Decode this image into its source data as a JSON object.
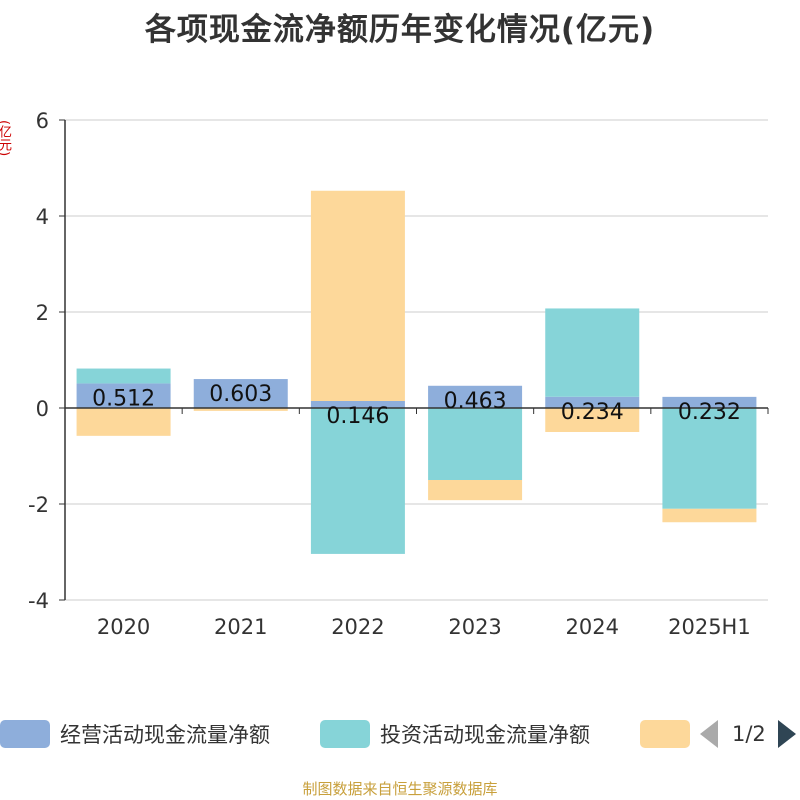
{
  "title": "各项现金流净额历年变化情况(亿元)",
  "unit_label": "(亿元)",
  "source": "制图数据来自恒生聚源数据库",
  "pager": {
    "text": "1/2"
  },
  "colors": {
    "operating": "#8eaedb",
    "investing": "#86d4d8",
    "financing": "#fdd89a",
    "axis": "#333333",
    "grid": "#cccccc"
  },
  "legend": [
    {
      "label": "经营活动现金流量净额",
      "color": "#8eaedb"
    },
    {
      "label": "投资活动现金流量净额",
      "color": "#86d4d8"
    },
    {
      "label": "",
      "color": "#fdd89a"
    }
  ],
  "chart_data": {
    "type": "bar",
    "stacked": true,
    "categories": [
      "2020",
      "2021",
      "2022",
      "2023",
      "2024",
      "2025H1"
    ],
    "ylim": [
      -4,
      6
    ],
    "yticks": [
      -4,
      -2,
      0,
      2,
      4,
      6
    ],
    "grid": true,
    "legend_position": "bottom",
    "series": [
      {
        "name": "经营活动现金流量净额",
        "values": [
          0.512,
          0.603,
          0.146,
          0.463,
          0.234,
          0.232
        ],
        "labels": [
          "0.512",
          "0.603",
          "0.146",
          "0.463",
          "0.234",
          "0.232"
        ]
      },
      {
        "name": "投资活动现金流量净额",
        "values": [
          0.31,
          0.0,
          -3.04,
          -1.5,
          1.84,
          -2.1
        ]
      },
      {
        "values": [
          -0.58,
          -0.06,
          4.38,
          -0.42,
          -0.5,
          -0.28
        ]
      }
    ]
  }
}
